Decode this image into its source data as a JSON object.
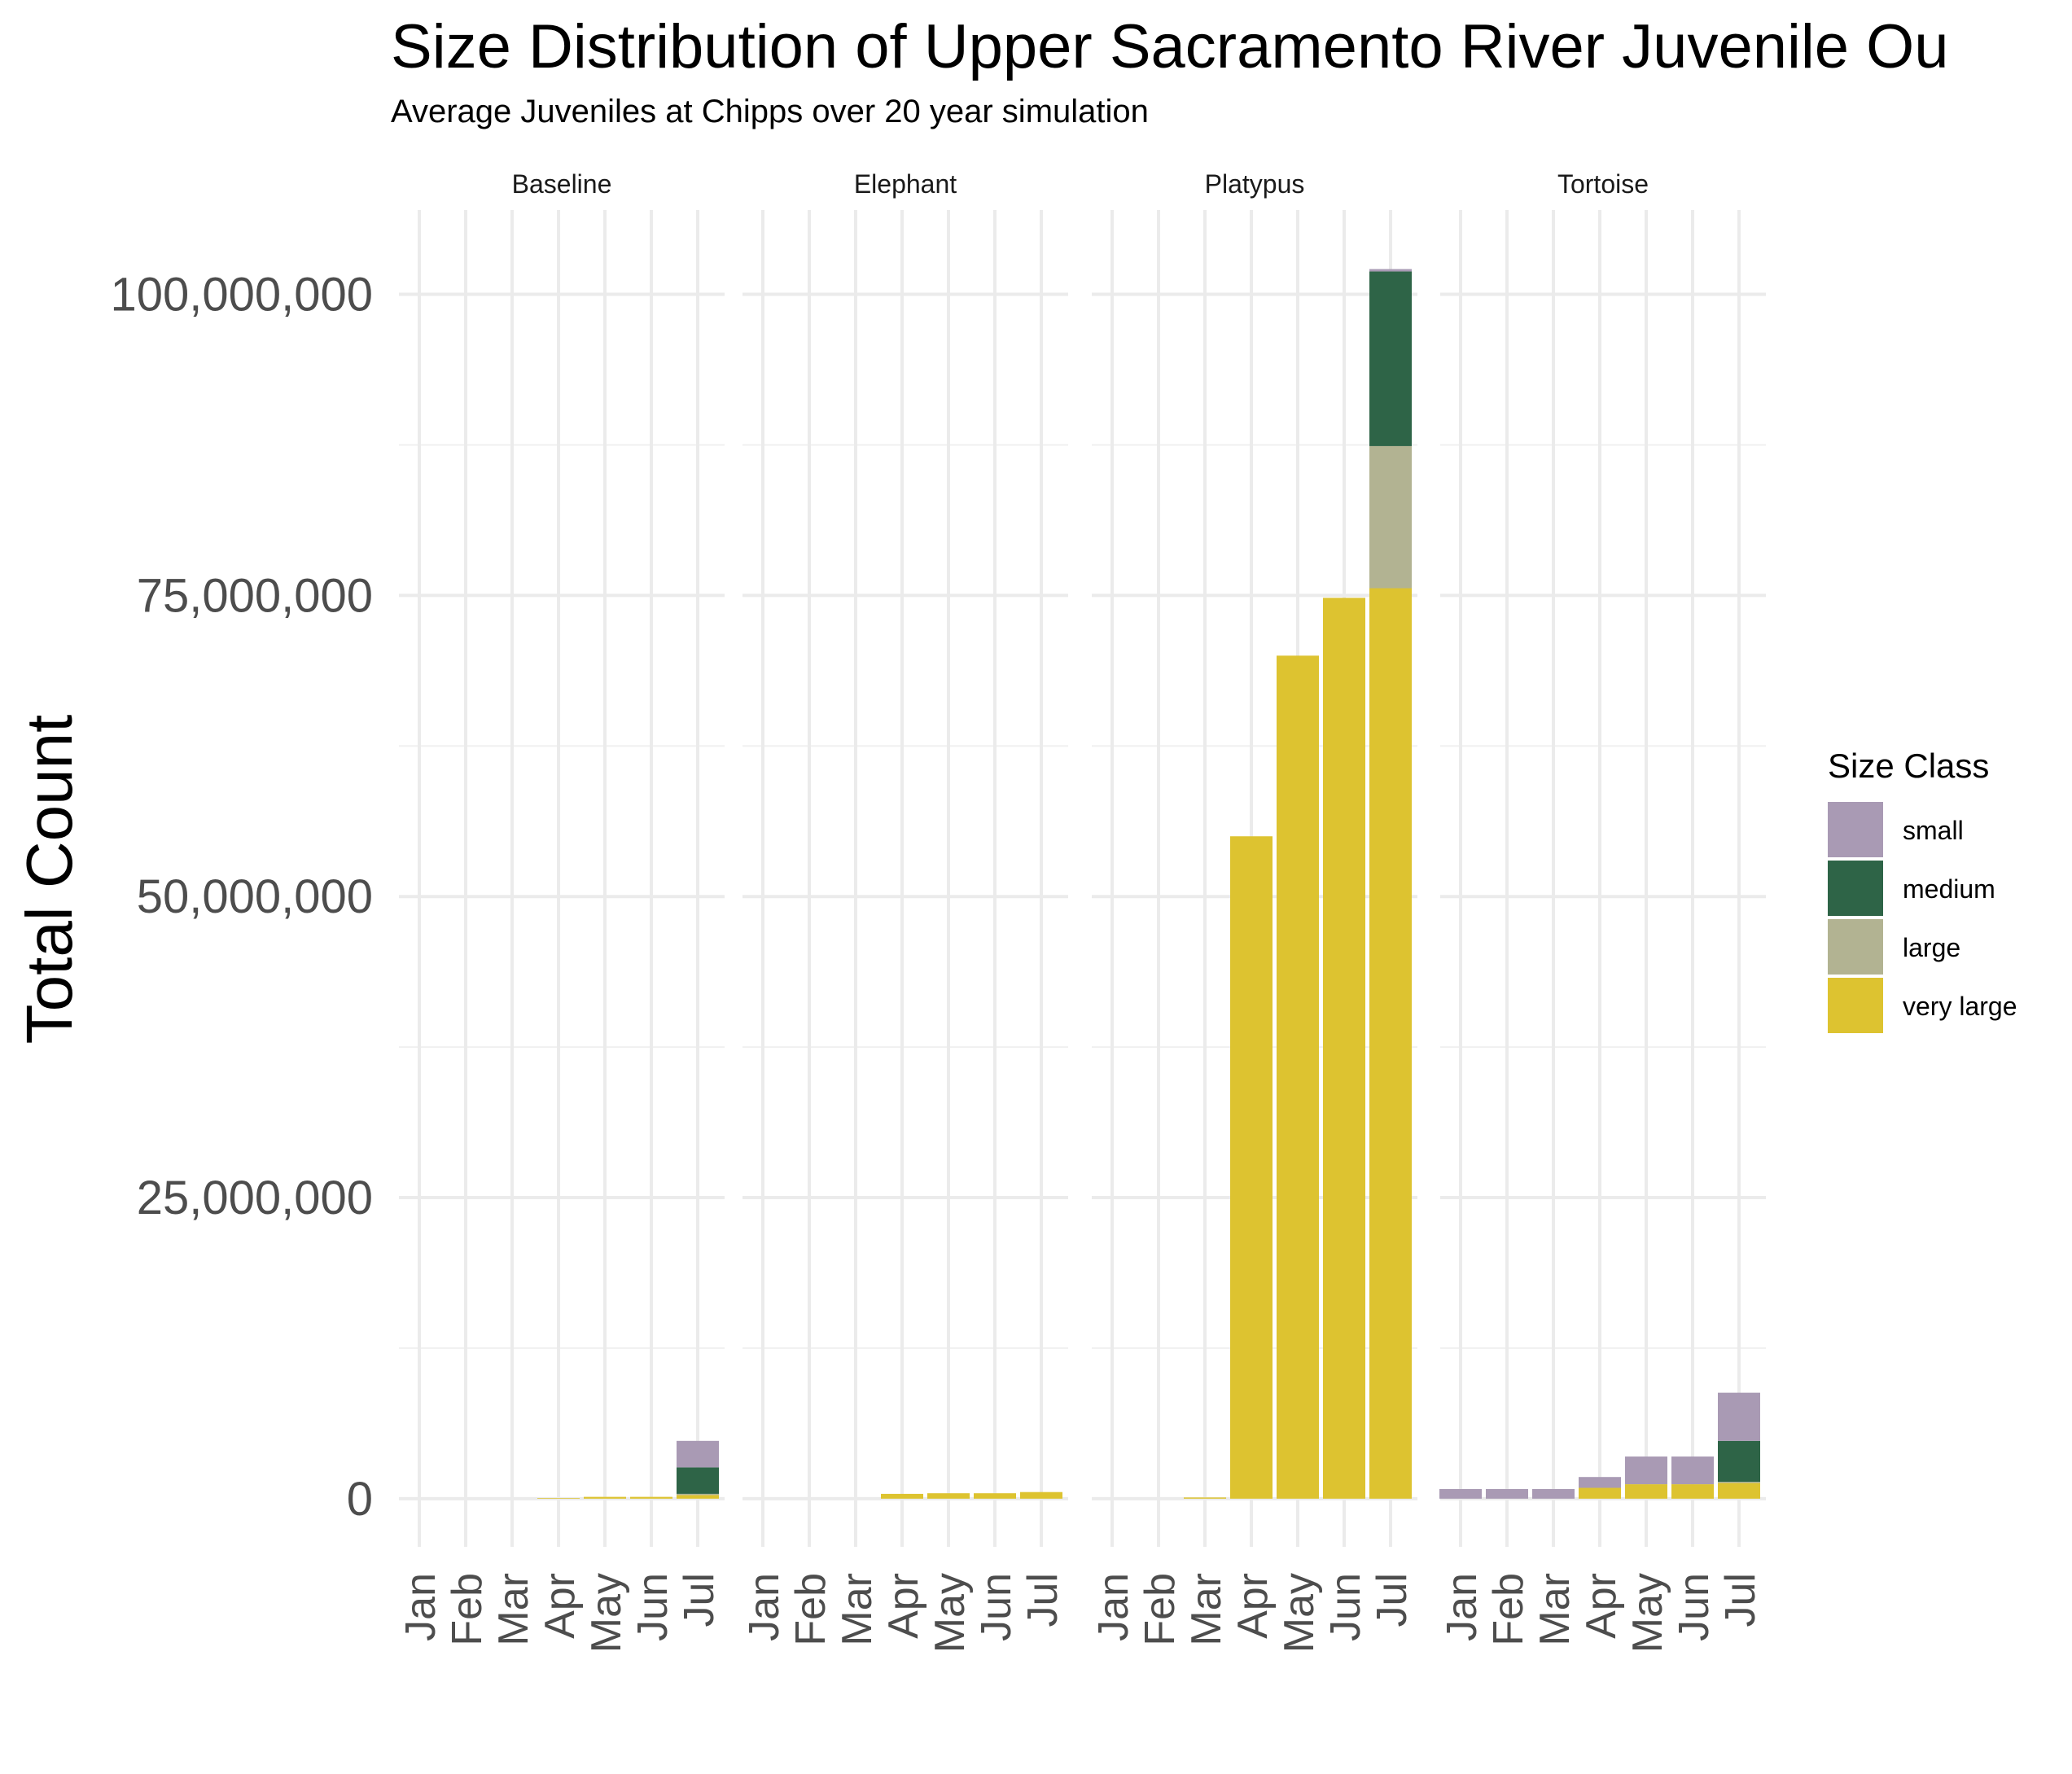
{
  "chart_data": {
    "type": "bar",
    "stacked": true,
    "title": "Size Distribution of Upper Sacramento River Juvenile Ou",
    "subtitle": "Average Juveniles at Chipps over 20 year simulation",
    "ylabel": "Total Count",
    "xlabel": "",
    "ylim": [
      -4000000,
      107000000
    ],
    "yticks": [
      0,
      25000000,
      50000000,
      75000000,
      100000000
    ],
    "ytick_labels": [
      "0",
      "25,000,000",
      "50,000,000",
      "75,000,000",
      "100,000,000"
    ],
    "categories": [
      "Jan",
      "Feb",
      "Mar",
      "Apr",
      "May",
      "Jun",
      "Jul"
    ],
    "grid": true,
    "legend": {
      "title": "Size Class",
      "position": "right",
      "entries": [
        "small",
        "medium",
        "large",
        "very large"
      ]
    },
    "colors": {
      "small": "#A99AB4",
      "medium": "#2E6447",
      "large": "#B2B392",
      "very large": "#DDC330"
    },
    "stack_order_bottom_to_top": [
      "very large",
      "large",
      "medium",
      "small"
    ],
    "panels": [
      {
        "name": "Baseline",
        "series": [
          {
            "name": "small",
            "values": [
              0,
              0,
              0,
              0,
              0,
              0,
              2200000
            ]
          },
          {
            "name": "medium",
            "values": [
              0,
              0,
              0,
              0,
              0,
              0,
              2200000
            ]
          },
          {
            "name": "large",
            "values": [
              0,
              0,
              0,
              0,
              0,
              0,
              100000
            ]
          },
          {
            "name": "very large",
            "values": [
              0,
              0,
              0,
              50000,
              150000,
              150000,
              300000
            ]
          }
        ]
      },
      {
        "name": "Elephant",
        "series": [
          {
            "name": "small",
            "values": [
              0,
              0,
              0,
              0,
              0,
              0,
              0
            ]
          },
          {
            "name": "medium",
            "values": [
              0,
              0,
              0,
              0,
              0,
              0,
              0
            ]
          },
          {
            "name": "large",
            "values": [
              0,
              0,
              0,
              0,
              0,
              0,
              0
            ]
          },
          {
            "name": "very large",
            "values": [
              0,
              0,
              0,
              400000,
              450000,
              450000,
              550000
            ]
          }
        ]
      },
      {
        "name": "Platypus",
        "series": [
          {
            "name": "small",
            "values": [
              0,
              0,
              0,
              0,
              0,
              0,
              200000
            ]
          },
          {
            "name": "medium",
            "values": [
              0,
              0,
              0,
              0,
              0,
              0,
              14500000
            ]
          },
          {
            "name": "large",
            "values": [
              0,
              0,
              0,
              0,
              0,
              0,
              11800000
            ]
          },
          {
            "name": "very large",
            "values": [
              0,
              0,
              100000,
              55000000,
              70000000,
              74800000,
              75600000
            ]
          }
        ]
      },
      {
        "name": "Tortoise",
        "series": [
          {
            "name": "small",
            "values": [
              800000,
              800000,
              800000,
              900000,
              2300000,
              2300000,
              4000000
            ]
          },
          {
            "name": "medium",
            "values": [
              0,
              0,
              0,
              0,
              0,
              0,
              3400000
            ]
          },
          {
            "name": "large",
            "values": [
              0,
              0,
              0,
              0,
              0,
              0,
              100000
            ]
          },
          {
            "name": "very large",
            "values": [
              0,
              0,
              0,
              900000,
              1200000,
              1200000,
              1300000
            ]
          }
        ]
      }
    ]
  }
}
